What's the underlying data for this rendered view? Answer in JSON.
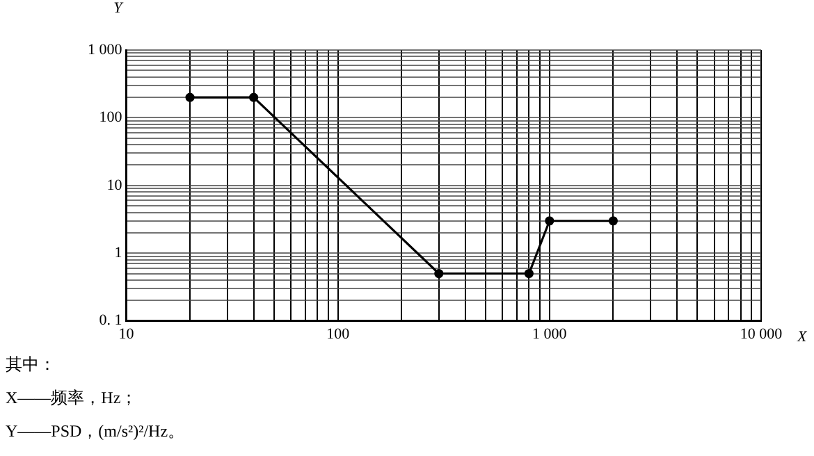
{
  "chart_data": {
    "type": "line",
    "xlabel": "X",
    "ylabel": "Y",
    "log": "xy",
    "grid": true,
    "legend": false,
    "marker": "circle",
    "line_style": "solid",
    "x": [
      20,
      40,
      300,
      800,
      1000,
      2000
    ],
    "series": [
      {
        "color": "#000000",
        "values": [
          200,
          200,
          0.5,
          0.5,
          3,
          3
        ]
      }
    ],
    "xlim": [
      10,
      10000
    ],
    "ylim": [
      0.1,
      1000
    ],
    "xticks": [
      10,
      {
        "value": 20,
        "label": null
      },
      {
        "value": 30,
        "label": null
      },
      {
        "value": 40,
        "label": null
      },
      {
        "value": 50,
        "label": null
      },
      {
        "value": 60,
        "label": null
      },
      {
        "value": 70,
        "label": null
      },
      {
        "value": 80,
        "label": null
      },
      {
        "value": 90,
        "label": null
      },
      100,
      {
        "value": 200,
        "label": null
      },
      {
        "value": 300,
        "label": null
      },
      {
        "value": 400,
        "label": null
      },
      {
        "value": 500,
        "label": null
      },
      {
        "value": 600,
        "label": null
      },
      {
        "value": 700,
        "label": null
      },
      {
        "value": 800,
        "label": null
      },
      {
        "value": 900,
        "label": null
      },
      {
        "value": 1000,
        "label": "1 000"
      },
      {
        "value": 2000,
        "label": null
      },
      {
        "value": 3000,
        "label": null
      },
      {
        "value": 4000,
        "label": null
      },
      {
        "value": 5000,
        "label": null
      },
      {
        "value": 6000,
        "label": null
      },
      {
        "value": 7000,
        "label": null
      },
      {
        "value": 8000,
        "label": null
      },
      {
        "value": 9000,
        "label": null
      },
      {
        "value": 10000,
        "label": "10 000"
      }
    ],
    "yticks": [
      {
        "value": 0.1,
        "label": "0. 1"
      },
      {
        "value": 0.2,
        "label": null
      },
      {
        "value": 0.3,
        "label": null
      },
      {
        "value": 0.4,
        "label": null
      },
      {
        "value": 0.5,
        "label": null
      },
      {
        "value": 0.6,
        "label": null
      },
      {
        "value": 0.7,
        "label": null
      },
      {
        "value": 0.8,
        "label": null
      },
      {
        "value": 0.9,
        "label": null
      },
      1,
      {
        "value": 2,
        "label": null
      },
      {
        "value": 3,
        "label": null
      },
      {
        "value": 4,
        "label": null
      },
      {
        "value": 5,
        "label": null
      },
      {
        "value": 6,
        "label": null
      },
      {
        "value": 7,
        "label": null
      },
      {
        "value": 8,
        "label": null
      },
      {
        "value": 9,
        "label": null
      },
      10,
      {
        "value": 20,
        "label": null
      },
      {
        "value": 30,
        "label": null
      },
      {
        "value": 40,
        "label": null
      },
      {
        "value": 50,
        "label": null
      },
      {
        "value": 60,
        "label": null
      },
      {
        "value": 70,
        "label": null
      },
      {
        "value": 80,
        "label": null
      },
      {
        "value": 90,
        "label": null
      },
      100,
      {
        "value": 200,
        "label": null
      },
      {
        "value": 300,
        "label": null
      },
      {
        "value": 400,
        "label": null
      },
      {
        "value": 500,
        "label": null
      },
      {
        "value": 600,
        "label": null
      },
      {
        "value": 700,
        "label": null
      },
      {
        "value": 800,
        "label": null
      },
      {
        "value": 900,
        "label": null
      },
      {
        "value": 1000,
        "label": "1 000"
      }
    ],
    "annotations": [
      "其中：",
      "X——频率，Hz；",
      "Y——PSD，(m/s²)²/Hz。"
    ]
  }
}
